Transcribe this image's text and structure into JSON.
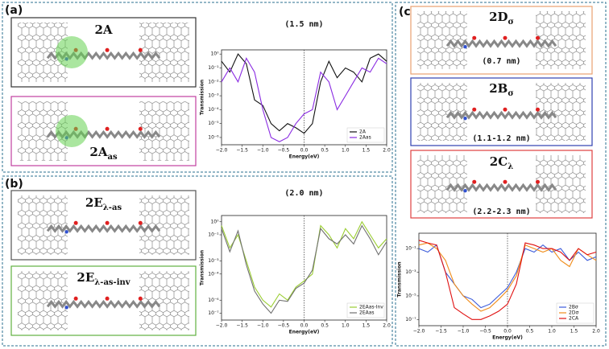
{
  "panels": {
    "a": "(a)",
    "b": "(b)",
    "c": "(c)"
  },
  "molecules": [
    {
      "main": "2A"
    },
    {
      "main": "2A",
      "sub": "as"
    },
    {
      "main": "2E",
      "sub": "λ-as"
    },
    {
      "main": "2E",
      "sub": "λ-as-inv"
    },
    {
      "main": "2D",
      "sub": "σ",
      "length": "(0.7 nm)"
    },
    {
      "main": "2B",
      "sub": "σ",
      "length": "(1.1-1.2 nm)"
    },
    {
      "main": "2C",
      "sub": "λ",
      "length": "(2.2-2.3 nm)"
    }
  ],
  "chart_data": [
    {
      "type": "line",
      "title": "(1.5 nm)",
      "xlabel": "Energy(eV)",
      "ylabel": "Transmission",
      "log_y": true,
      "zero_line": true,
      "legend": "lower right",
      "x": [
        -2,
        -1.8,
        -1.6,
        -1.4,
        -1.2,
        -1,
        -0.8,
        -0.6,
        -0.4,
        -0.2,
        0,
        0.2,
        0.4,
        0.6,
        0.8,
        1,
        1.2,
        1.4,
        1.6,
        1.8,
        2
      ],
      "xlim": [
        -2,
        2
      ],
      "xticks": [
        {
          "value": -2,
          "label": "−2.0"
        },
        {
          "value": -1.5,
          "label": "−1.5"
        },
        {
          "value": -1,
          "label": "−1.0"
        },
        {
          "value": -0.5,
          "label": "−0.5"
        },
        {
          "value": 0,
          "label": "0.0"
        },
        {
          "value": 0.5,
          "label": "0.5"
        },
        {
          "value": 1,
          "label": "1.0"
        },
        {
          "value": 1.5,
          "label": "1.5"
        },
        {
          "value": 2,
          "label": "2.0"
        }
      ],
      "ylim": [
        3e-07,
        2
      ],
      "yticks": [
        {
          "value": 1,
          "label": "10⁰"
        },
        {
          "value": 0.1,
          "label": "10⁻¹"
        },
        {
          "value": 0.01,
          "label": "10⁻²"
        },
        {
          "value": 0.001,
          "label": "10⁻³"
        },
        {
          "value": 0.0001,
          "label": "10⁻⁴"
        },
        {
          "value": 1e-05,
          "label": "10⁻⁵"
        },
        {
          "value": 1e-06,
          "label": "10⁻⁶"
        }
      ],
      "series": [
        {
          "name": "2A",
          "color": "#111111",
          "values": [
            0.3,
            0.05,
            1,
            0.2,
            0.0005,
            0.0002,
            1e-05,
            3e-06,
            1e-05,
            5e-06,
            2e-06,
            1e-05,
            0.01,
            0.3,
            0.02,
            0.1,
            0.05,
            0.01,
            0.5,
            1,
            0.3
          ]
        },
        {
          "name": "2Aas",
          "color": "#8a2be2",
          "values": [
            0.01,
            0.1,
            0.01,
            0.5,
            0.05,
            0.0001,
            1e-06,
            5e-07,
            1e-06,
            1e-05,
            5e-05,
            0.0001,
            0.05,
            0.01,
            0.0001,
            0.001,
            0.01,
            0.1,
            0.05,
            0.5,
            0.2
          ]
        }
      ]
    },
    {
      "type": "line",
      "title": "(2.0 nm)",
      "xlabel": "Energy(eV)",
      "ylabel": "Transmission",
      "log_y": true,
      "zero_line": true,
      "legend": "lower right",
      "x": [
        -2,
        -1.8,
        -1.6,
        -1.4,
        -1.2,
        -1,
        -0.8,
        -0.6,
        -0.4,
        -0.2,
        0,
        0.2,
        0.4,
        0.6,
        0.8,
        1,
        1.2,
        1.4,
        1.6,
        1.8,
        2
      ],
      "xlim": [
        -2,
        2
      ],
      "xticks": [
        {
          "value": -2,
          "label": "−2.0"
        },
        {
          "value": -1.5,
          "label": "−1.5"
        },
        {
          "value": -1,
          "label": "−1.0"
        },
        {
          "value": -0.5,
          "label": "−0.5"
        },
        {
          "value": 0,
          "label": "0.0"
        },
        {
          "value": 0.5,
          "label": "0.5"
        },
        {
          "value": 1,
          "label": "1.0"
        },
        {
          "value": 1.5,
          "label": "1.5"
        },
        {
          "value": 2,
          "label": "2.0"
        }
      ],
      "ylim": [
        3e-08,
        3
      ],
      "yticks": [
        {
          "value": 1,
          "label": "10⁰"
        },
        {
          "value": 0.1,
          "label": "10⁻¹"
        },
        {
          "value": 0.001,
          "label": "10⁻³"
        },
        {
          "value": 0.0001,
          "label": "10⁻⁴"
        },
        {
          "value": 1e-06,
          "label": "10⁻⁶"
        },
        {
          "value": 1e-07,
          "label": "10⁻⁷"
        }
      ],
      "series": [
        {
          "name": "2EAas-Inv",
          "color": "#9acd32",
          "values": [
            0.5,
            0.01,
            0.1,
            0.001,
            1e-05,
            1e-06,
            3e-07,
            3e-06,
            1e-06,
            1e-05,
            3e-05,
            0.0001,
            0.5,
            0.1,
            0.01,
            0.3,
            0.05,
            1,
            0.1,
            0.01,
            0.05
          ]
        },
        {
          "name": "2EAas",
          "color": "#707070",
          "values": [
            0.3,
            0.005,
            0.2,
            0.0005,
            5e-06,
            5e-07,
            1e-07,
            1e-06,
            8e-07,
            8e-06,
            2e-05,
            0.0002,
            0.3,
            0.05,
            0.02,
            0.1,
            0.02,
            0.5,
            0.05,
            0.003,
            0.03
          ]
        }
      ]
    },
    {
      "type": "line",
      "xlabel": "Energy(eV)",
      "ylabel": "Transmission",
      "log_y": true,
      "zero_line": true,
      "legend": "lower right",
      "x": [
        -2,
        -1.8,
        -1.6,
        -1.4,
        -1.2,
        -1,
        -0.8,
        -0.6,
        -0.4,
        -0.2,
        0,
        0.2,
        0.4,
        0.6,
        0.8,
        1,
        1.2,
        1.4,
        1.6,
        1.8,
        2
      ],
      "xlim": [
        -2,
        2
      ],
      "xticks": [
        {
          "value": -2,
          "label": "−2.0"
        },
        {
          "value": -1.5,
          "label": "−1.5"
        },
        {
          "value": -1,
          "label": "−1.0"
        },
        {
          "value": -0.5,
          "label": "−0.5"
        },
        {
          "value": 0,
          "label": "0.0"
        },
        {
          "value": 0.5,
          "label": "0.5"
        },
        {
          "value": 1,
          "label": "1.0"
        },
        {
          "value": 1.5,
          "label": "1.5"
        },
        {
          "value": 2,
          "label": "2.0"
        }
      ],
      "ylim": [
        3e-08,
        2
      ],
      "yticks": [
        {
          "value": 0.1,
          "label": "10⁻¹"
        },
        {
          "value": 0.001,
          "label": "10⁻³"
        },
        {
          "value": 1e-05,
          "label": "10⁻⁵"
        },
        {
          "value": 1e-07,
          "label": "10⁻⁷"
        }
      ],
      "series": [
        {
          "name": "2Bσ",
          "color": "#3b5bdb",
          "values": [
            0.1,
            0.05,
            0.2,
            0.001,
            0.0001,
            1e-05,
            5e-06,
            1e-06,
            2e-06,
            1e-05,
            5e-05,
            0.001,
            0.1,
            0.05,
            0.2,
            0.05,
            0.1,
            0.01,
            0.05,
            0.01,
            0.02
          ]
        },
        {
          "name": "2Dσ",
          "color": "#f08c1a",
          "values": [
            0.2,
            0.3,
            0.1,
            0.01,
            0.0001,
            1e-05,
            2e-06,
            5e-07,
            1e-06,
            5e-06,
            3e-05,
            0.0005,
            0.2,
            0.1,
            0.05,
            0.1,
            0.01,
            0.003,
            0.1,
            0.03,
            0.01
          ]
        },
        {
          "name": "2CA",
          "color": "#e01010",
          "values": [
            0.5,
            0.3,
            0.2,
            0.001,
            1e-06,
            3e-07,
            1e-07,
            1e-07,
            2e-07,
            5e-07,
            2e-06,
            0.0001,
            0.3,
            0.2,
            0.1,
            0.1,
            0.05,
            0.01,
            0.1,
            0.03,
            0.05
          ]
        }
      ]
    }
  ]
}
